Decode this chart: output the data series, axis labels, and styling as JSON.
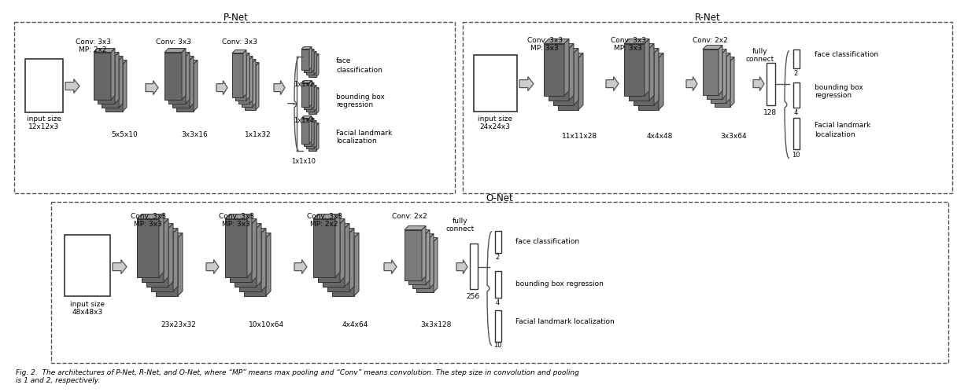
{
  "background_color": "#ffffff",
  "figure_caption": "Fig. 2.  The architectures of P-Net, R-Net, and O-Net, where “MP” means max pooling and “Conv” means convolution. The step size in convolution and pooling\nis 1 and 2, respectively.",
  "pnet_title": "P-Net",
  "rnet_title": "R-Net",
  "onet_title": "O-Net",
  "fc_front": "#676767",
  "fc_side": "#8a8a8a",
  "fc_top": "#9e9e9e",
  "fc_front2": "#7a7a7a",
  "fc_side2": "#9c9c9c",
  "fc_top2": "#b0b0b0",
  "white": "#ffffff",
  "black": "#000000",
  "ec": "#333333",
  "border_color": "#555555"
}
